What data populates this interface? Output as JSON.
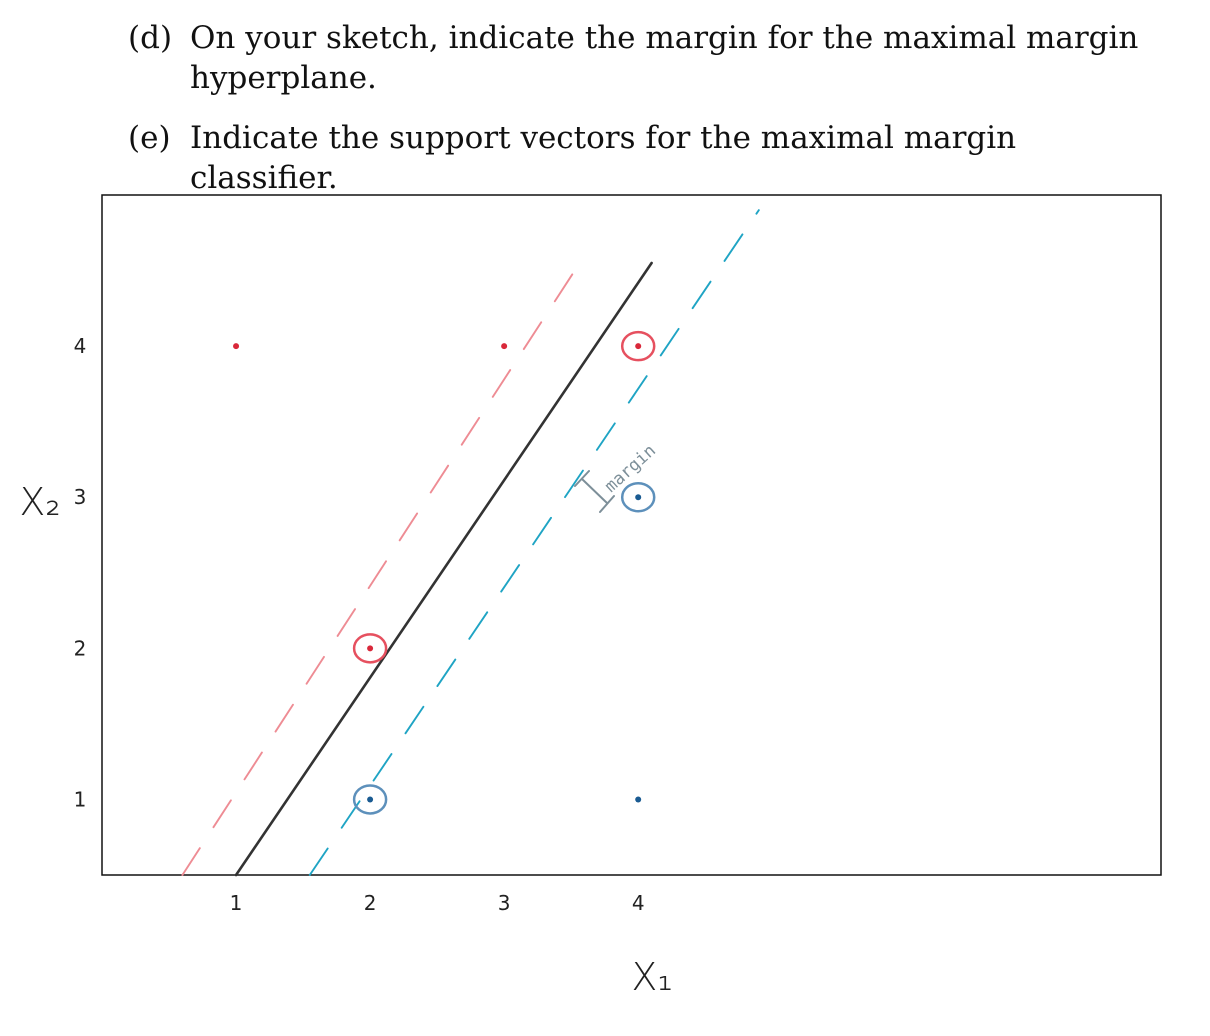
{
  "questions": [
    {
      "label": "(d)",
      "text_line1": "On your sketch, indicate the margin for the maximal margin",
      "text_line2": "hyperplane."
    },
    {
      "label": "(e)",
      "text": "Indicate the support vectors for the maximal margin classifier."
    }
  ],
  "chart_data": {
    "type": "scatter",
    "xlabel": "X₁",
    "ylabel": "X₂",
    "x_ticks": [
      "1",
      "2",
      "3",
      "4"
    ],
    "y_ticks": [
      "1",
      "2",
      "3",
      "4"
    ],
    "xlim": [
      0,
      7.9
    ],
    "ylim": [
      0.5,
      5.0
    ],
    "grid": false,
    "series": [
      {
        "class": "red",
        "color": "#d9283a",
        "points": [
          {
            "x": 1,
            "y": 4,
            "support": false
          },
          {
            "x": 3,
            "y": 4,
            "support": false
          },
          {
            "x": 4,
            "y": 4,
            "support": true
          },
          {
            "x": 2,
            "y": 2,
            "support": true
          }
        ]
      },
      {
        "class": "blue",
        "color": "#1a5b92",
        "points": [
          {
            "x": 4,
            "y": 3,
            "support": true
          },
          {
            "x": 2,
            "y": 1,
            "support": true
          },
          {
            "x": 4,
            "y": 1,
            "support": false
          }
        ]
      }
    ],
    "lines": [
      {
        "kind": "hyperplane",
        "style": "solid",
        "color": "#333333",
        "x": [
          1,
          4.1
        ],
        "y": [
          0.5,
          4.55
        ]
      },
      {
        "kind": "margin-upper",
        "style": "dashed",
        "color": "#ee8c94",
        "x": [
          0.6,
          3.6
        ],
        "y": [
          0.5,
          4.6
        ]
      },
      {
        "kind": "margin-lower",
        "style": "dashed",
        "color": "#1fa4c4",
        "x": [
          1.55,
          4.9
        ],
        "y": [
          0.5,
          4.9
        ]
      }
    ],
    "annotation": {
      "text": "margin",
      "color": "#7d8f99"
    }
  }
}
